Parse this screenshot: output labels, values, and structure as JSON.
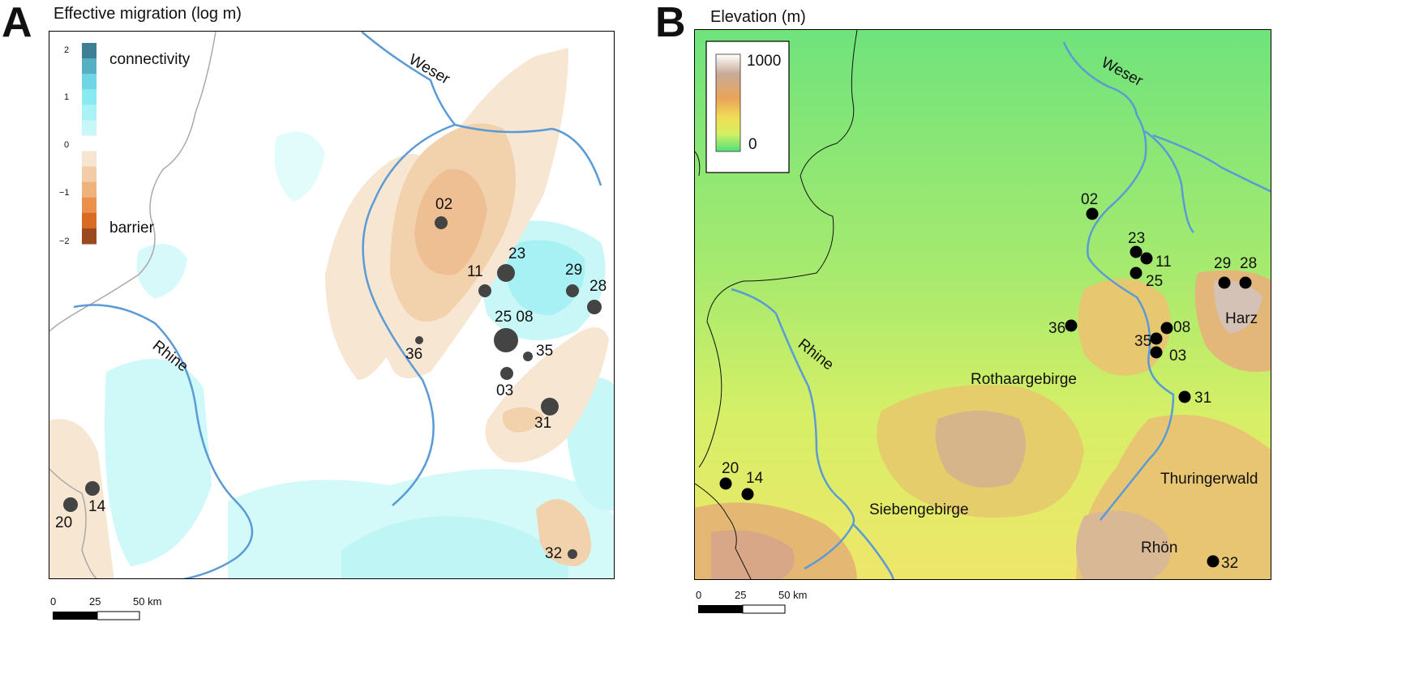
{
  "panel_a": {
    "letter": "A",
    "title": "Effective migration (log m)",
    "legend": {
      "ticks": [
        "2",
        "1",
        "0",
        "−1",
        "−2"
      ],
      "high_label": "connectivity",
      "low_label": "barrier",
      "colors": [
        "#3e7f94",
        "#57afc4",
        "#6fd6e6",
        "#8aeaf2",
        "#a9f2f6",
        "#c8f7f8",
        "#ffffff",
        "#f6e5d1",
        "#f2cda8",
        "#eeb27c",
        "#e9914c",
        "#d96a21",
        "#9b4a1f"
      ]
    },
    "rivers": [
      "Weser",
      "Rhine"
    ],
    "sites": [
      {
        "id": "02",
        "size": "medium"
      },
      {
        "id": "23",
        "size": "large"
      },
      {
        "id": "11",
        "size": "medium"
      },
      {
        "id": "29",
        "size": "medium"
      },
      {
        "id": "28",
        "size": "medium"
      },
      {
        "id": "25 08",
        "size": "xlarge"
      },
      {
        "id": "36",
        "size": "small"
      },
      {
        "id": "35",
        "size": "small"
      },
      {
        "id": "03",
        "size": "medium"
      },
      {
        "id": "31",
        "size": "large"
      },
      {
        "id": "14",
        "size": "medium"
      },
      {
        "id": "20",
        "size": "medium"
      },
      {
        "id": "32",
        "size": "small"
      }
    ],
    "scale": {
      "t0": "0",
      "t1": "25",
      "t2": "50 km"
    }
  },
  "panel_b": {
    "letter": "B",
    "title": "Elevation (m)",
    "legend": {
      "max": "1000",
      "min": "0",
      "colors": [
        "#ffffff",
        "#c9b4a2",
        "#e5a35c",
        "#f2dc55",
        "#d7f060",
        "#5fe070"
      ]
    },
    "rivers": [
      "Weser",
      "Rhine"
    ],
    "regions": [
      "Rothaargebirge",
      "Harz",
      "Thuringerwald",
      "Siebengebirge",
      "Rhön"
    ],
    "sites": [
      "02",
      "23",
      "11",
      "25",
      "29",
      "28",
      "36",
      "08",
      "35",
      "03",
      "31",
      "20",
      "14",
      "32"
    ],
    "scale": {
      "t0": "0",
      "t1": "25",
      "t2": "50 km"
    }
  }
}
